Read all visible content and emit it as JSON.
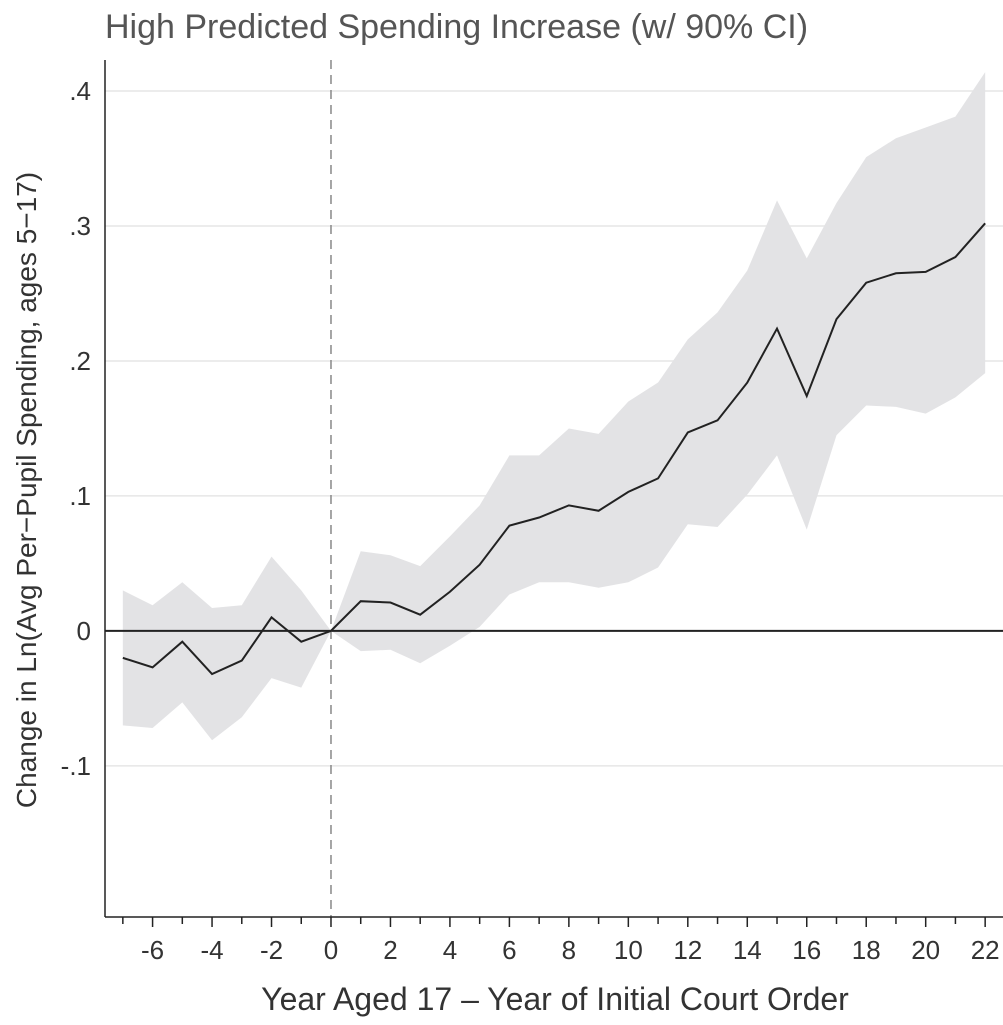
{
  "chart_data": {
    "type": "line",
    "title": "High Predicted Spending Increase (w/ 90% CI)",
    "x_label": "Year Aged 17 – Year of Initial Court Order",
    "y_label": "Change in Ln(Avg Per−Pupil Spending, ages 5−17)",
    "x": [
      -7,
      -6,
      -5,
      -4,
      -3,
      -2,
      -1,
      0,
      1,
      2,
      3,
      4,
      5,
      6,
      7,
      8,
      9,
      10,
      11,
      12,
      13,
      14,
      15,
      16,
      17,
      18,
      19,
      20,
      21,
      22
    ],
    "values": [
      -0.02,
      -0.027,
      -0.008,
      -0.032,
      -0.022,
      0.01,
      -0.008,
      0,
      0.022,
      0.021,
      0.012,
      0.029,
      0.049,
      0.078,
      0.084,
      0.093,
      0.089,
      0.103,
      0.113,
      0.147,
      0.156,
      0.184,
      0.224,
      0.174,
      0.231,
      0.258,
      0.265,
      0.266,
      0.277,
      0.302
    ],
    "ci_upper": [
      0.03,
      0.019,
      0.036,
      0.017,
      0.019,
      0.055,
      0.03,
      0,
      0.059,
      0.056,
      0.048,
      0.07,
      0.093,
      0.13,
      0.13,
      0.15,
      0.146,
      0.17,
      0.184,
      0.216,
      0.236,
      0.267,
      0.319,
      0.276,
      0.317,
      0.351,
      0.365,
      0.373,
      0.381,
      0.414
    ],
    "ci_lower": [
      -0.07,
      -0.072,
      -0.053,
      -0.081,
      -0.064,
      -0.035,
      -0.042,
      0,
      -0.015,
      -0.014,
      -0.024,
      -0.011,
      0.003,
      0.027,
      0.036,
      0.036,
      0.032,
      0.036,
      0.047,
      0.079,
      0.077,
      0.101,
      0.13,
      0.075,
      0.145,
      0.167,
      0.166,
      0.161,
      0.173,
      0.191
    ],
    "color": "#222222",
    "band_color": "#e3e3e5",
    "xlim": [
      -7.6,
      22.6
    ],
    "ylim": [
      -0.212,
      0.423
    ],
    "xticks": [
      -6,
      -4,
      -2,
      0,
      2,
      4,
      6,
      8,
      10,
      12,
      14,
      16,
      18,
      20,
      22
    ],
    "xticks_minor": [
      -7,
      -5,
      -3,
      -1,
      1,
      3,
      5,
      7,
      9,
      11,
      13,
      15,
      17,
      19,
      21
    ],
    "yticks": [
      {
        "value": -0.1,
        "label": "-.1"
      },
      0,
      {
        "value": 0.1,
        "label": ".1"
      },
      {
        "value": 0.2,
        "label": ".2"
      },
      {
        "value": 0.3,
        "label": ".3"
      },
      {
        "value": 0.4,
        "label": ".4"
      }
    ],
    "hline": 0,
    "vline": 0,
    "grid": true
  }
}
